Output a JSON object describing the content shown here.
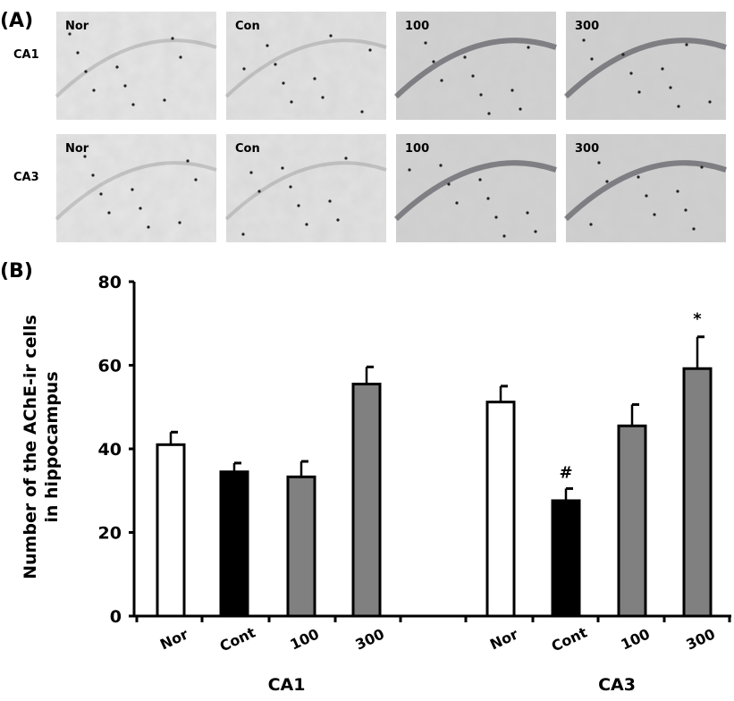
{
  "panel_a": {
    "label": "(A)",
    "rows": [
      {
        "label": "CA1",
        "panels": [
          "Nor",
          "Con",
          "100",
          "300"
        ]
      },
      {
        "label": "CA3",
        "panels": [
          "Nor",
          "Con",
          "100",
          "300"
        ]
      }
    ]
  },
  "panel_b_label": "(B)",
  "chart_data": {
    "type": "bar",
    "ylabel_lines": [
      "Number of the AChE-ir cells",
      "in hippocampus"
    ],
    "ylim": [
      0,
      80
    ],
    "yticks": [
      "0",
      "20",
      "40",
      "60",
      "80"
    ],
    "grid": false,
    "legend": "none",
    "groups": [
      {
        "name": "CA1",
        "categories": [
          "Nor",
          "Cont",
          "100",
          "300"
        ],
        "values": [
          41.0,
          34.5,
          33.3,
          55.5
        ],
        "error": [
          3.0,
          2.1,
          3.7,
          4.1
        ],
        "annotations": [
          "",
          "",
          "",
          ""
        ]
      },
      {
        "name": "CA3",
        "categories": [
          "Nor",
          "Cont",
          "100",
          "300"
        ],
        "values": [
          51.2,
          27.6,
          45.5,
          59.2
        ],
        "error": [
          3.8,
          2.9,
          5.1,
          7.6
        ],
        "annotations": [
          "",
          "#",
          "",
          "*"
        ]
      }
    ],
    "bar_colors": [
      "#ffffff",
      "#000000",
      "#808080",
      "#808080"
    ]
  }
}
